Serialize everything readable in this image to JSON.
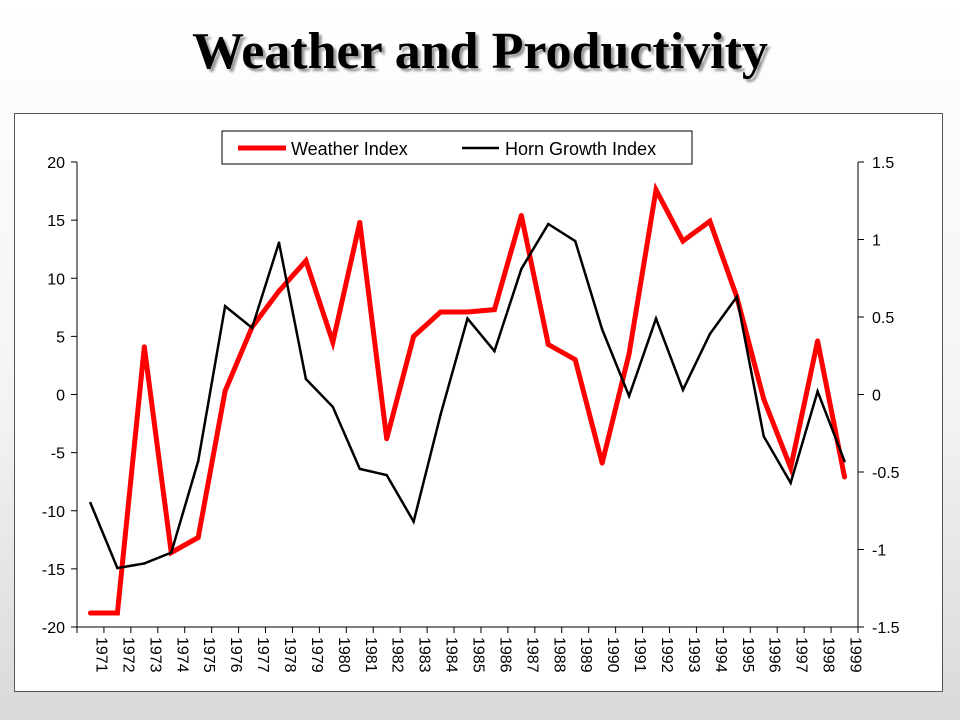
{
  "slide": {
    "title": "Weather and Productivity"
  },
  "chart_data": {
    "type": "line",
    "x": [
      1971,
      1972,
      1973,
      1974,
      1975,
      1976,
      1977,
      1978,
      1979,
      1980,
      1981,
      1982,
      1983,
      1984,
      1985,
      1986,
      1987,
      1988,
      1989,
      1990,
      1991,
      1992,
      1993,
      1994,
      1995,
      1996,
      1997,
      1998,
      1999
    ],
    "series": [
      {
        "name": "Weather Index",
        "axis": "left",
        "color": "#ff0000",
        "values": [
          -18.8,
          -18.8,
          4.1,
          -13.6,
          -12.3,
          0.3,
          5.8,
          8.9,
          11.5,
          4.5,
          14.8,
          -3.8,
          5.0,
          7.1,
          7.1,
          7.3,
          15.4,
          4.3,
          3.0,
          -5.9,
          3.5,
          17.6,
          13.2,
          14.9,
          8.4,
          -0.4,
          -6.3,
          4.6,
          -7.1
        ]
      },
      {
        "name": "Horn Growth Index",
        "axis": "right",
        "color": "#000000",
        "values": [
          -0.7,
          -1.12,
          -1.09,
          -1.02,
          -0.43,
          0.57,
          0.43,
          0.98,
          0.1,
          -0.08,
          -0.48,
          -0.52,
          -0.82,
          -0.13,
          0.49,
          0.28,
          0.81,
          1.1,
          0.99,
          0.42,
          -0.01,
          0.49,
          0.03,
          0.39,
          0.63,
          -0.27,
          -0.57,
          0.02,
          -0.43
        ]
      }
    ],
    "y_left": {
      "lim": [
        -20,
        20
      ],
      "ticks": [
        "-20",
        "-15",
        "-10",
        "-5",
        "0",
        "5",
        "10",
        "15",
        "20"
      ]
    },
    "y_right": {
      "lim": [
        -1.5,
        1.5
      ],
      "ticks": [
        "-1.5",
        "-1",
        "-0.5",
        "0",
        "0.5",
        "1",
        "1.5"
      ]
    },
    "x_tick_labels": [
      "1971",
      "1972",
      "1973",
      "1974",
      "1975",
      "1976",
      "1977",
      "1978",
      "1979",
      "1980",
      "1981",
      "1982",
      "1983",
      "1984",
      "1985",
      "1986",
      "1987",
      "1988",
      "1989",
      "1990",
      "1991",
      "1992",
      "1993",
      "1994",
      "1995",
      "1996",
      "1997",
      "1998",
      "1999"
    ],
    "legend_position": "top-center",
    "grid": false
  }
}
